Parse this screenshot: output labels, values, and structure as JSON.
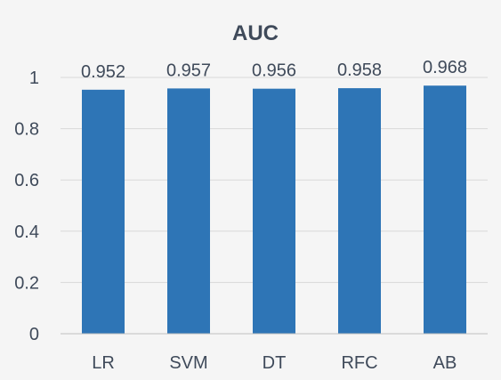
{
  "chart_data": {
    "type": "bar",
    "title": "AUC",
    "xlabel": "",
    "ylabel": "",
    "categories": [
      "LR",
      "SVM",
      "DT",
      "RFC",
      "AB"
    ],
    "values": [
      0.952,
      0.957,
      0.956,
      0.958,
      0.968
    ],
    "value_labels": [
      "0.952",
      "0.957",
      "0.956",
      "0.958",
      "0.968"
    ],
    "ylim": [
      0,
      1
    ],
    "yticks": [
      0,
      0.2,
      0.4,
      0.6,
      0.8,
      1
    ],
    "ytick_labels": [
      "0",
      "0.2",
      "0.4",
      "0.6",
      "0.8",
      "1"
    ],
    "grid": true,
    "legend": "none",
    "bar_color": "#2e75b6"
  }
}
